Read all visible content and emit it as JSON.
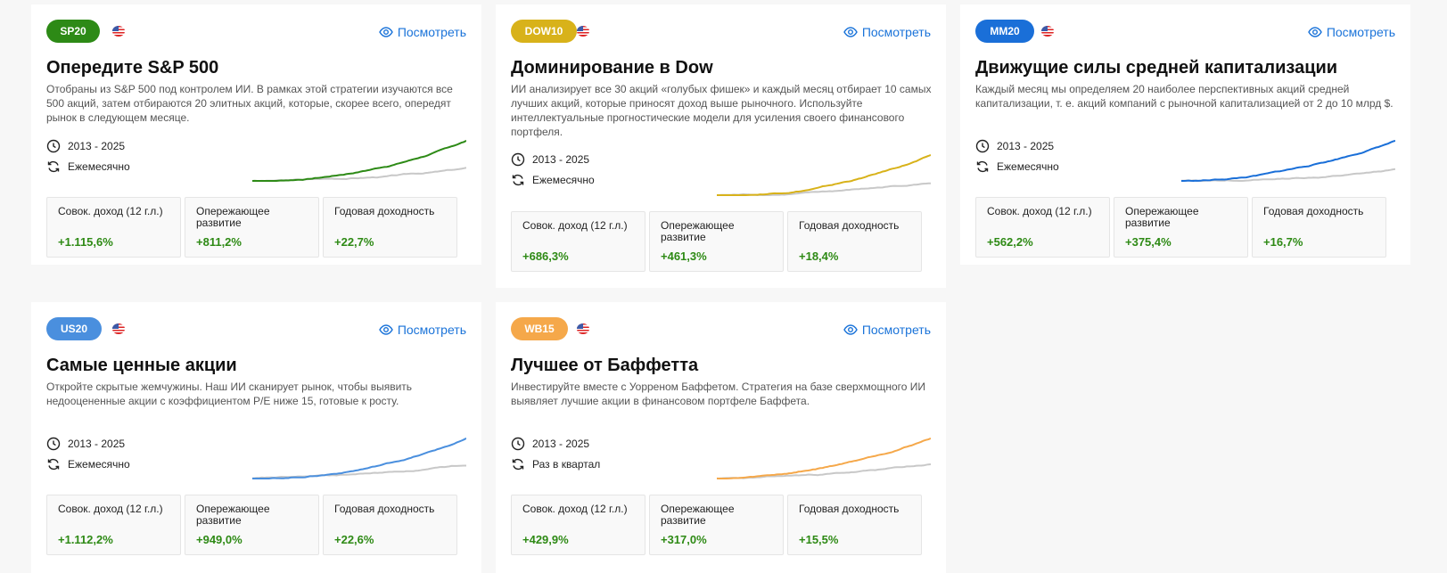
{
  "view_label": "Посмотреть",
  "cards": [
    {
      "tag": "SP20",
      "tag_color": "#2d8a16",
      "title": "Опередите S&P 500",
      "description": "Отобраны из S&P 500 под контролем ИИ. В рамках этой стратегии изучаются все 500 акций, затем отбираются 20 элитных акций, которые, скорее всего, опередят рынок в следующем месяце.",
      "period": "2013 - 2025",
      "frequency": "Ежемесячно",
      "line_color": "#2d8a16",
      "stats": [
        {
          "label": "Совок. доход (12 г.л.)",
          "value": "+1.115,6%"
        },
        {
          "label": "Опережающее развитие",
          "value": "+811,2%"
        },
        {
          "label": "Годовая доходность",
          "value": "+22,7%"
        }
      ]
    },
    {
      "tag": "DOW10",
      "tag_color": "#d8b21a",
      "title": "Доминирование в Dow",
      "description": "ИИ анализирует все 30 акций «голубых фишек» и каждый месяц отбирает 10 самых лучших акций, которые приносят доход выше рыночного. Используйте интеллектуальные прогностические модели для усиления своего финансового портфеля.",
      "period": "2013 - 2025",
      "frequency": "Ежемесячно",
      "line_color": "#d8b21a",
      "stats": [
        {
          "label": "Совок. доход (12 г.л.)",
          "value": "+686,3%"
        },
        {
          "label": "Опережающее развитие",
          "value": "+461,3%"
        },
        {
          "label": "Годовая доходность",
          "value": "+18,4%"
        }
      ]
    },
    {
      "tag": "MM20",
      "tag_color": "#1a6fd8",
      "title": "Движущие силы средней капитализации",
      "description": "Каждый месяц мы определяем 20 наиболее перспективных акций средней капитализации, т. е. акций компаний с рыночной капитализацией от 2 до 10 млрд $.",
      "period": "2013 - 2025",
      "frequency": "Ежемесячно",
      "line_color": "#1a6fd8",
      "stats": [
        {
          "label": "Совок. доход (12 г.л.)",
          "value": "+562,2%"
        },
        {
          "label": "Опережающее развитие",
          "value": "+375,4%"
        },
        {
          "label": "Годовая доходность",
          "value": "+16,7%"
        }
      ]
    },
    {
      "tag": "US20",
      "tag_color": "#4a8fde",
      "title": "Самые ценные акции",
      "description": "Откройте скрытые жемчужины. Наш ИИ сканирует рынок, чтобы выявить недооцененные акции с коэффициентом P/E ниже 15, готовые к росту.",
      "period": "2013 - 2025",
      "frequency": "Ежемесячно",
      "line_color": "#4a8fde",
      "stats": [
        {
          "label": "Совок. доход (12 г.л.)",
          "value": "+1.112,2%"
        },
        {
          "label": "Опережающее развитие",
          "value": "+949,0%"
        },
        {
          "label": "Годовая доходность",
          "value": "+22,6%"
        }
      ]
    },
    {
      "tag": "WB15",
      "tag_color": "#f5a84a",
      "title": "Лучшее от Баффетта",
      "description": "Инвестируйте вместе с Уорреном Баффетом. Стратегия на базе сверхмощного ИИ выявляет лучшие акции в финансовом портфеле Баффета.",
      "period": "2013 - 2025",
      "frequency": "Раз в квартал",
      "line_color": "#f5a84a",
      "stats": [
        {
          "label": "Совок. доход (12 г.л.)",
          "value": "+429,9%"
        },
        {
          "label": "Опережающее развитие",
          "value": "+317,0%"
        },
        {
          "label": "Годовая доходность",
          "value": "+15,5%"
        }
      ]
    }
  ]
}
